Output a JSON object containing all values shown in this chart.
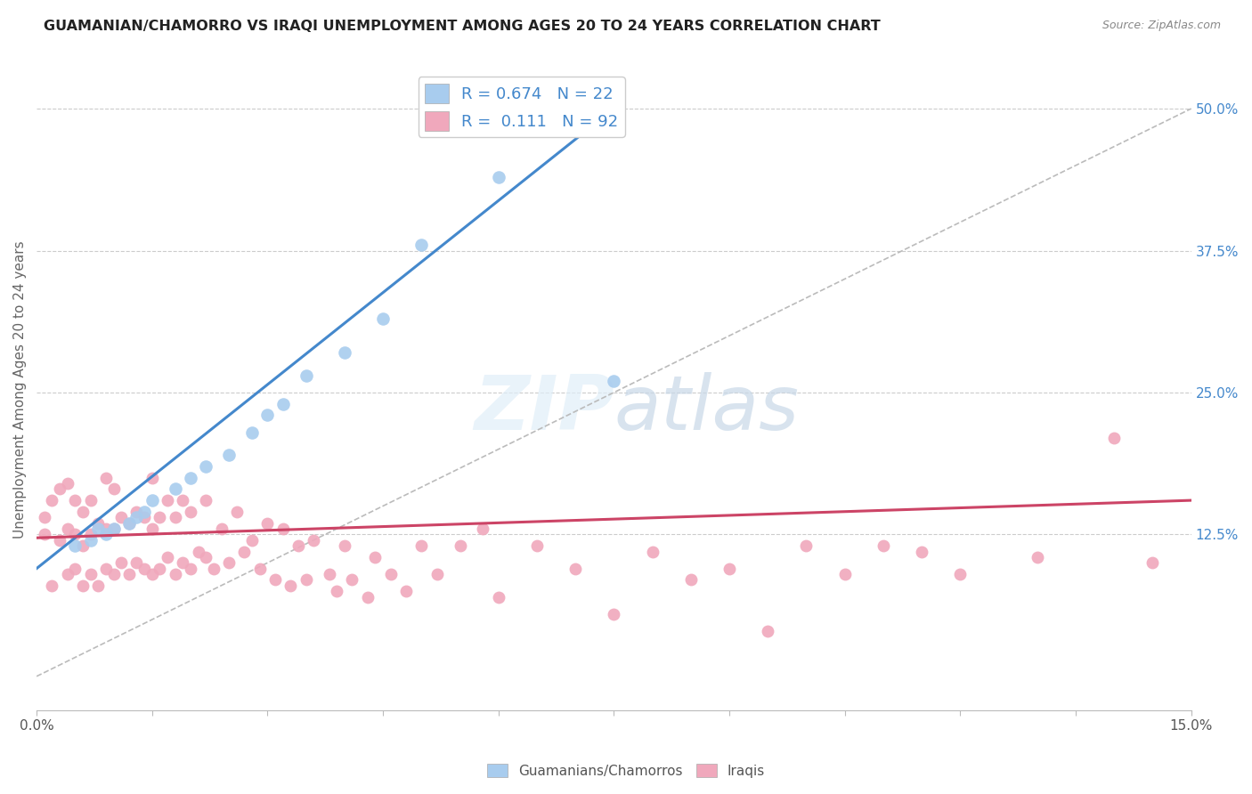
{
  "title": "GUAMANIAN/CHAMORRO VS IRAQI UNEMPLOYMENT AMONG AGES 20 TO 24 YEARS CORRELATION CHART",
  "source": "Source: ZipAtlas.com",
  "ylabel": "Unemployment Among Ages 20 to 24 years",
  "y_ticks_right": [
    "12.5%",
    "25.0%",
    "37.5%",
    "50.0%"
  ],
  "y_ticks_right_vals": [
    0.125,
    0.25,
    0.375,
    0.5
  ],
  "xlim": [
    0.0,
    0.15
  ],
  "ylim": [
    -0.03,
    0.535
  ],
  "legend_label1": "Guamanians/Chamorros",
  "legend_label2": "Iraqis",
  "legend_r1": "R = 0.674",
  "legend_n1": "N = 22",
  "legend_r2": "R =  0.111",
  "legend_n2": "N = 92",
  "color_blue": "#A8CCEE",
  "color_pink": "#F0A8BC",
  "color_blue_line": "#4488CC",
  "color_pink_line": "#CC4466",
  "color_text_blue": "#4488CC",
  "background_color": "#FFFFFF",
  "guam_x": [
    0.005,
    0.007,
    0.008,
    0.009,
    0.01,
    0.012,
    0.013,
    0.014,
    0.015,
    0.018,
    0.02,
    0.022,
    0.025,
    0.028,
    0.03,
    0.032,
    0.035,
    0.04,
    0.045,
    0.05,
    0.06,
    0.075
  ],
  "guam_y": [
    0.115,
    0.12,
    0.13,
    0.125,
    0.13,
    0.135,
    0.14,
    0.145,
    0.155,
    0.165,
    0.175,
    0.185,
    0.195,
    0.215,
    0.23,
    0.24,
    0.265,
    0.285,
    0.315,
    0.38,
    0.44,
    0.26
  ],
  "iraqi_x": [
    0.001,
    0.001,
    0.002,
    0.002,
    0.003,
    0.003,
    0.004,
    0.004,
    0.004,
    0.005,
    0.005,
    0.005,
    0.006,
    0.006,
    0.006,
    0.007,
    0.007,
    0.007,
    0.008,
    0.008,
    0.009,
    0.009,
    0.009,
    0.01,
    0.01,
    0.01,
    0.011,
    0.011,
    0.012,
    0.012,
    0.013,
    0.013,
    0.014,
    0.014,
    0.015,
    0.015,
    0.015,
    0.016,
    0.016,
    0.017,
    0.017,
    0.018,
    0.018,
    0.019,
    0.019,
    0.02,
    0.02,
    0.021,
    0.022,
    0.022,
    0.023,
    0.024,
    0.025,
    0.026,
    0.027,
    0.028,
    0.029,
    0.03,
    0.031,
    0.032,
    0.033,
    0.034,
    0.035,
    0.036,
    0.038,
    0.039,
    0.04,
    0.041,
    0.043,
    0.044,
    0.046,
    0.048,
    0.05,
    0.052,
    0.055,
    0.058,
    0.06,
    0.065,
    0.07,
    0.075,
    0.08,
    0.085,
    0.09,
    0.095,
    0.1,
    0.105,
    0.11,
    0.115,
    0.12,
    0.13,
    0.14,
    0.145
  ],
  "iraqi_y": [
    0.125,
    0.14,
    0.08,
    0.155,
    0.12,
    0.165,
    0.09,
    0.13,
    0.17,
    0.095,
    0.125,
    0.155,
    0.08,
    0.115,
    0.145,
    0.09,
    0.125,
    0.155,
    0.08,
    0.135,
    0.095,
    0.13,
    0.175,
    0.09,
    0.13,
    0.165,
    0.1,
    0.14,
    0.09,
    0.135,
    0.1,
    0.145,
    0.095,
    0.14,
    0.09,
    0.13,
    0.175,
    0.095,
    0.14,
    0.105,
    0.155,
    0.09,
    0.14,
    0.1,
    0.155,
    0.095,
    0.145,
    0.11,
    0.105,
    0.155,
    0.095,
    0.13,
    0.1,
    0.145,
    0.11,
    0.12,
    0.095,
    0.135,
    0.085,
    0.13,
    0.08,
    0.115,
    0.085,
    0.12,
    0.09,
    0.075,
    0.115,
    0.085,
    0.07,
    0.105,
    0.09,
    0.075,
    0.115,
    0.09,
    0.115,
    0.13,
    0.07,
    0.115,
    0.095,
    0.055,
    0.11,
    0.085,
    0.095,
    0.04,
    0.115,
    0.09,
    0.115,
    0.11,
    0.09,
    0.105,
    0.21,
    0.1
  ],
  "blue_line_x": [
    0.0,
    0.075
  ],
  "blue_line_y": [
    0.095,
    0.5
  ],
  "pink_line_x": [
    0.0,
    0.15
  ],
  "pink_line_y": [
    0.122,
    0.155
  ],
  "dash_line_x": [
    0.0,
    0.15
  ],
  "dash_line_y": [
    0.0,
    0.5
  ]
}
